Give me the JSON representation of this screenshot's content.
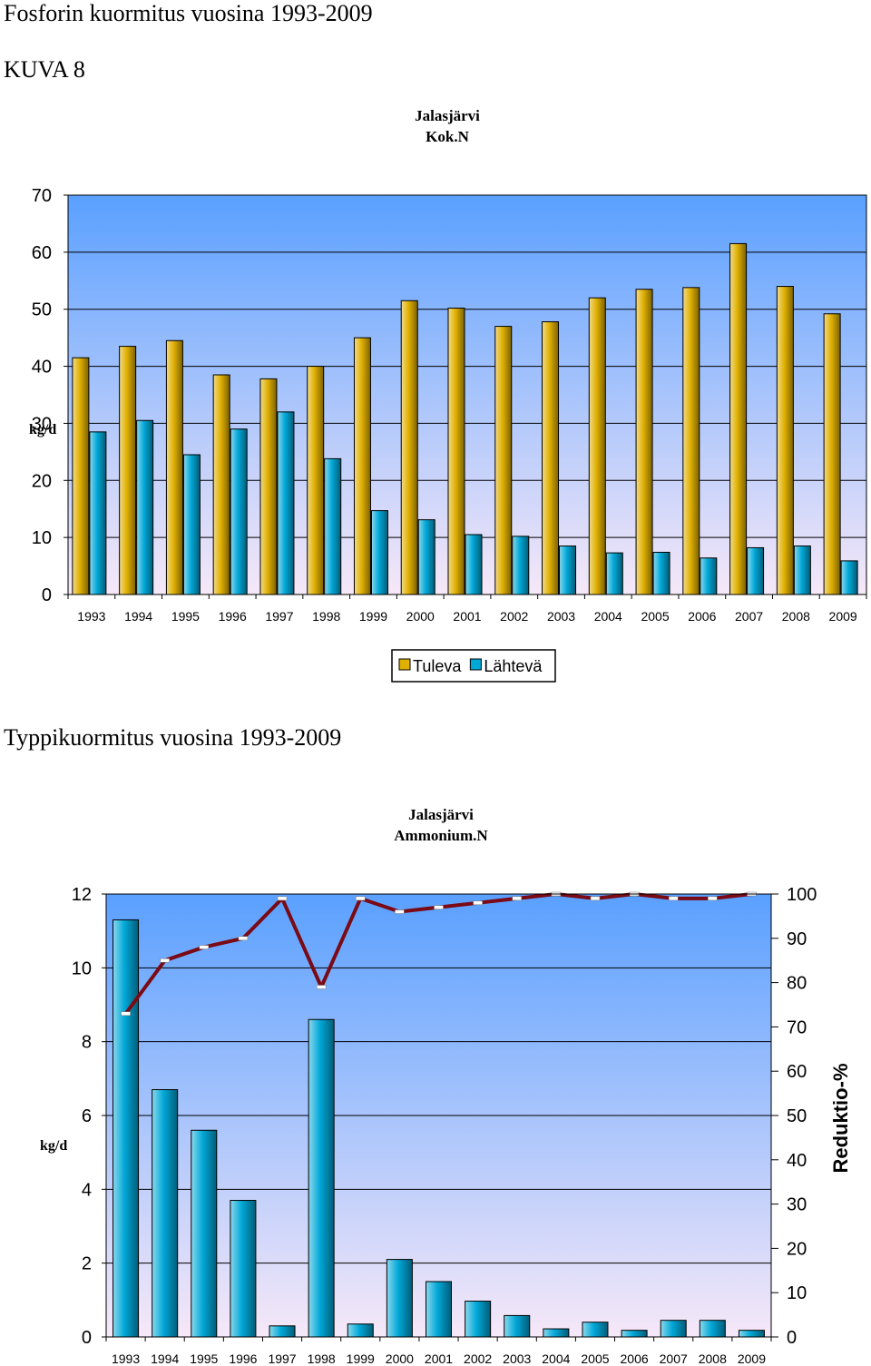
{
  "page": {
    "heading1": "Fosforin kuormitus vuosina 1993-2009",
    "heading2": "KUVA 8",
    "heading3": "Typpikuormitus vuosina 1993-2009"
  },
  "chart_data": [
    {
      "type": "bar",
      "title": "Jalasjärvi",
      "subtitle": "Kok.N",
      "ylabel": "kg/d",
      "xlabel": "",
      "ylim": [
        0,
        70
      ],
      "yticks": [
        0,
        10,
        20,
        30,
        40,
        50,
        60,
        70
      ],
      "categories": [
        "1993",
        "1994",
        "1995",
        "1996",
        "1997",
        "1998",
        "1999",
        "2000",
        "2001",
        "2002",
        "2003",
        "2004",
        "2005",
        "2006",
        "2007",
        "2008",
        "2009"
      ],
      "series": [
        {
          "name": "Tuleva",
          "color": "#e0b000",
          "values": [
            41.5,
            43.5,
            44.5,
            38.5,
            37.8,
            40,
            45,
            51.5,
            50.2,
            47,
            47.8,
            52,
            53.5,
            53.8,
            61.5,
            54,
            49.2
          ]
        },
        {
          "name": "Lähtevä",
          "color": "#00a8d8",
          "values": [
            28.5,
            30.5,
            24.5,
            29,
            32,
            23.8,
            14.7,
            13.1,
            10.5,
            10.2,
            8.5,
            7.3,
            7.4,
            6.4,
            8.2,
            8.5,
            5.9
          ]
        }
      ],
      "grid": true,
      "legend": "bottom-center"
    },
    {
      "type": "bar",
      "title": "Jalasjärvi",
      "subtitle": "Ammonium.N",
      "ylabel": "kg/d",
      "y2label": "Reduktio-%",
      "ylim": [
        0,
        12
      ],
      "yticks": [
        0,
        2,
        4,
        6,
        8,
        10,
        12
      ],
      "y2lim": [
        0,
        100
      ],
      "y2ticks": [
        0,
        10,
        20,
        30,
        40,
        50,
        60,
        70,
        80,
        90,
        100
      ],
      "categories": [
        "1993",
        "1994",
        "1995",
        "1996",
        "1997",
        "1998",
        "1999",
        "2000",
        "2001",
        "2002",
        "2003",
        "2004",
        "2005",
        "2006",
        "2007",
        "2008",
        "2009"
      ],
      "series": [
        {
          "name": "",
          "kind": "bar",
          "axis": "left",
          "color": "#00a8d8",
          "values": [
            11.3,
            6.7,
            5.6,
            3.7,
            0.3,
            8.6,
            0.35,
            2.1,
            1.5,
            0.97,
            0.58,
            0.22,
            0.4,
            0.18,
            0.45,
            0.45,
            0.18
          ]
        },
        {
          "name": "",
          "kind": "line",
          "axis": "right",
          "color": "#7a0a14",
          "values": [
            73,
            85,
            88,
            90,
            99,
            79,
            99,
            96,
            97,
            98,
            99,
            100,
            99,
            100,
            99,
            99,
            100
          ]
        }
      ],
      "grid": true
    }
  ]
}
